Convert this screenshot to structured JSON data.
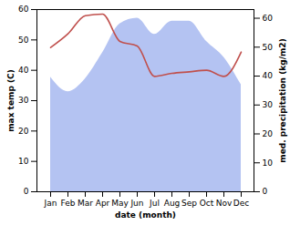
{
  "chart_data": {
    "type": "line",
    "categories": [
      "Jan",
      "Feb",
      "Mar",
      "Apr",
      "May",
      "Jun",
      "Jul",
      "Aug",
      "Sep",
      "Oct",
      "Nov",
      "Dec"
    ],
    "x_label": "date (month)",
    "y_label": "max temp (C)",
    "y2_label": "med. precipitation (kg/m2)",
    "ylim": [
      0,
      60
    ],
    "yticks": [
      0,
      10,
      20,
      30,
      40,
      50,
      60
    ],
    "y2lim": [
      0,
      63
    ],
    "y2ticks": [
      0,
      10,
      20,
      30,
      40,
      50,
      60
    ],
    "grid": false,
    "series": [
      {
        "type": "area",
        "axis": "y2",
        "color": "#b4c3f2",
        "values": [
          39.6,
          34.6,
          39,
          48,
          58,
          60,
          54.4,
          59,
          59,
          52,
          46.5,
          37
        ]
      },
      {
        "type": "line",
        "axis": "y",
        "color": "#c0504d",
        "values": [
          47.5,
          52,
          58,
          58.5,
          49.5,
          48,
          38,
          39,
          39.5,
          40,
          38,
          46
        ]
      }
    ]
  }
}
